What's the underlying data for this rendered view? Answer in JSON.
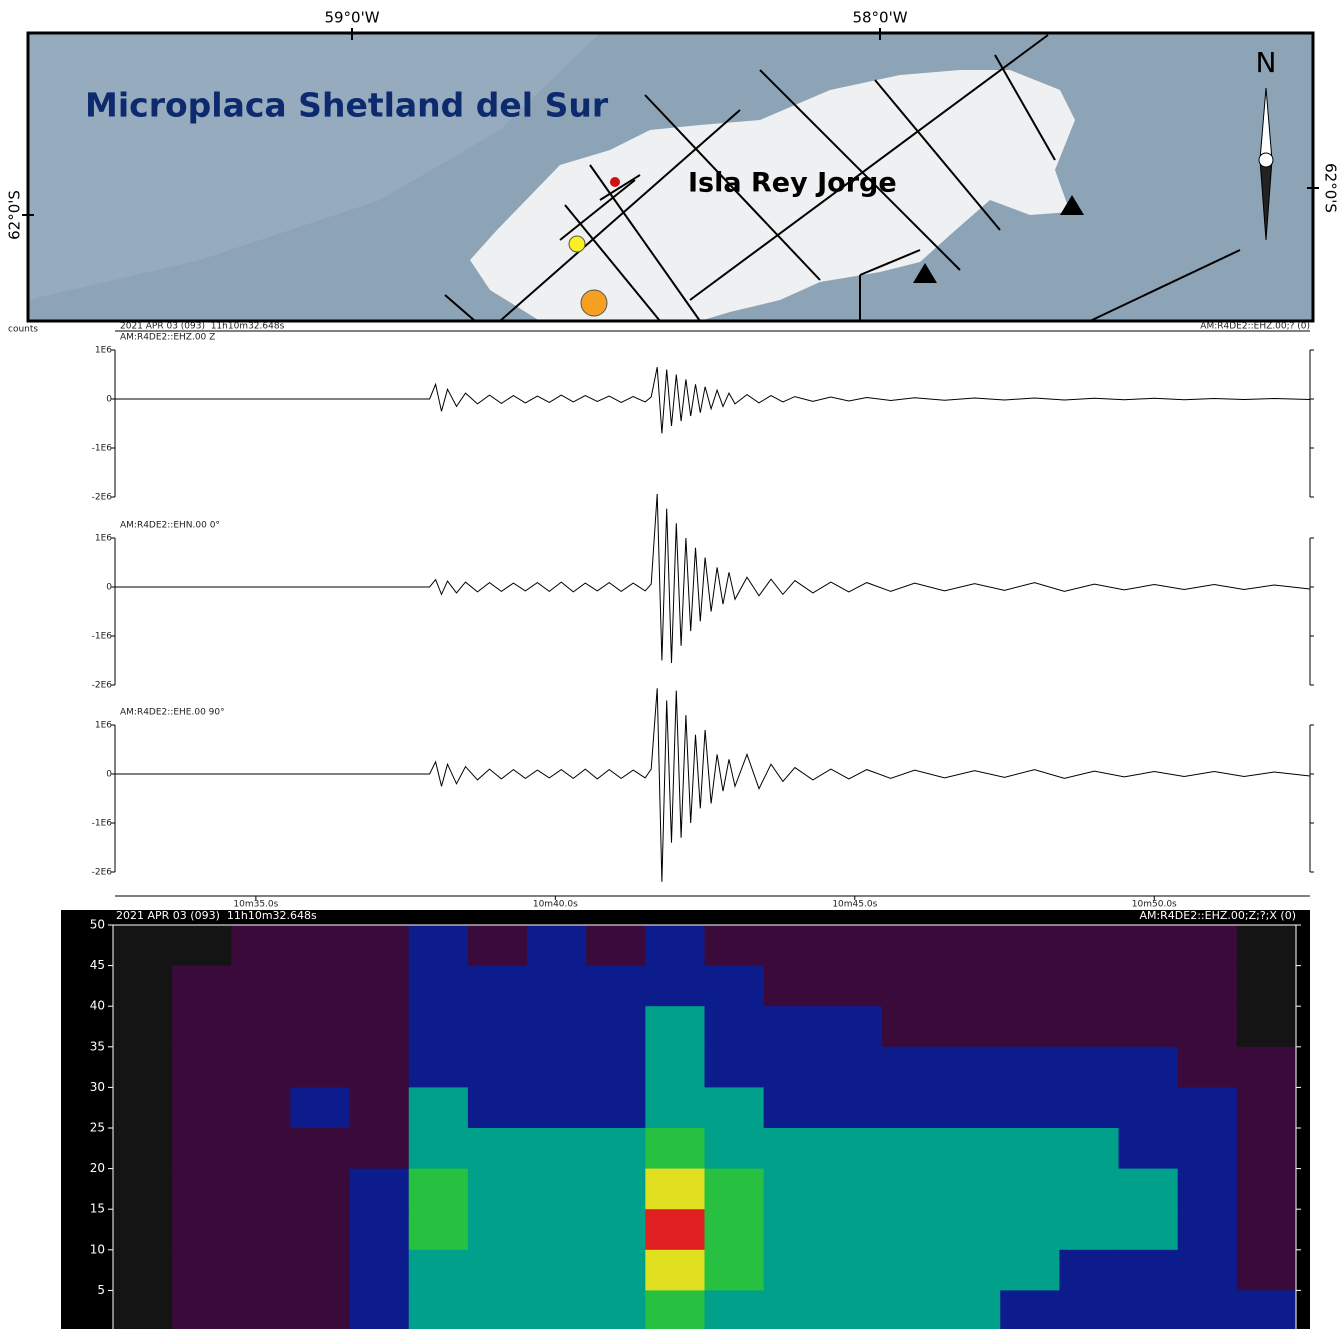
{
  "map": {
    "lon_labels": [
      "59°0'W",
      "58°0'W"
    ],
    "lat_labels": [
      "62°0'S",
      "62°0'S"
    ],
    "region_label": "Microplaca Shetland del Sur",
    "island_label": "Isla Rey Jorge",
    "north": "N"
  },
  "chart_data": [
    {
      "type": "line",
      "header_left": "2021 APR 03 (093)  11h10m32.648s",
      "header_right": "AM:R4DE2::EHZ.00;? (0)",
      "y_unit": "counts",
      "label": "AM:R4DE2::EHZ.00 Z",
      "x": [
        32.648,
        37.9,
        38.0,
        38.1,
        38.2,
        38.35,
        38.5,
        38.7,
        38.9,
        39.1,
        39.3,
        39.5,
        39.7,
        39.9,
        40.1,
        40.3,
        40.5,
        40.7,
        40.9,
        41.1,
        41.3,
        41.5,
        41.6,
        41.7,
        41.78,
        41.86,
        41.94,
        42.02,
        42.1,
        42.18,
        42.26,
        42.34,
        42.42,
        42.5,
        42.6,
        42.7,
        42.8,
        42.9,
        43.0,
        43.2,
        43.4,
        43.6,
        43.8,
        44.0,
        44.3,
        44.6,
        44.9,
        45.2,
        45.6,
        46.0,
        46.5,
        47.0,
        47.5,
        48.0,
        48.5,
        49.0,
        49.5,
        50.0,
        50.5,
        51.0,
        51.5,
        52.0,
        52.6
      ],
      "series": [
        {
          "color": "#000000",
          "values": [
            0,
            0,
            300000,
            -250000,
            200000,
            -150000,
            120000,
            -100000,
            80000,
            -90000,
            70000,
            -80000,
            60000,
            -70000,
            80000,
            -60000,
            70000,
            -50000,
            60000,
            -70000,
            50000,
            -60000,
            40000,
            650000,
            -700000,
            600000,
            -550000,
            500000,
            -450000,
            400000,
            -350000,
            300000,
            -280000,
            250000,
            -200000,
            180000,
            -150000,
            120000,
            -100000,
            90000,
            -80000,
            70000,
            -60000,
            50000,
            -50000,
            40000,
            -40000,
            30000,
            -30000,
            25000,
            -25000,
            20000,
            -20000,
            20000,
            -20000,
            15000,
            -15000,
            15000,
            -15000,
            10000,
            -10000,
            10000,
            -10000
          ]
        }
      ],
      "xlim": [
        32.648,
        52.6
      ],
      "ylim": [
        -2000000,
        1000000
      ],
      "yticks": [
        {
          "value": 1000000,
          "label": "1E6"
        },
        0,
        {
          "value": -1000000,
          "label": "-1E6"
        },
        {
          "value": -2000000,
          "label": "-2E6"
        }
      ]
    },
    {
      "type": "line",
      "label": "AM:R4DE2::EHN.00 0°",
      "x": [
        32.648,
        37.9,
        38.0,
        38.1,
        38.2,
        38.35,
        38.5,
        38.7,
        38.9,
        39.1,
        39.3,
        39.5,
        39.7,
        39.9,
        40.1,
        40.3,
        40.5,
        40.7,
        40.9,
        41.1,
        41.3,
        41.5,
        41.6,
        41.7,
        41.78,
        41.86,
        41.94,
        42.02,
        42.1,
        42.18,
        42.26,
        42.34,
        42.42,
        42.5,
        42.6,
        42.7,
        42.8,
        42.9,
        43.0,
        43.2,
        43.4,
        43.6,
        43.8,
        44.0,
        44.3,
        44.6,
        44.9,
        45.2,
        45.6,
        46.0,
        46.5,
        47.0,
        47.5,
        48.0,
        48.5,
        49.0,
        49.5,
        50.0,
        50.5,
        51.0,
        51.5,
        52.0,
        52.6
      ],
      "series": [
        {
          "color": "#000000",
          "values": [
            0,
            0,
            150000,
            -150000,
            120000,
            -120000,
            100000,
            -100000,
            90000,
            -90000,
            80000,
            -80000,
            90000,
            -90000,
            100000,
            -100000,
            80000,
            -80000,
            90000,
            -90000,
            80000,
            -80000,
            60000,
            1900000,
            -1500000,
            1600000,
            -1550000,
            1300000,
            -1200000,
            1000000,
            -900000,
            800000,
            -700000,
            600000,
            -500000,
            400000,
            -350000,
            300000,
            -250000,
            200000,
            -180000,
            160000,
            -150000,
            130000,
            -120000,
            100000,
            -100000,
            90000,
            -90000,
            80000,
            -80000,
            70000,
            -70000,
            90000,
            -90000,
            60000,
            -60000,
            50000,
            -50000,
            50000,
            -50000,
            40000,
            -40000
          ]
        }
      ],
      "xlim": [
        32.648,
        52.6
      ],
      "ylim": [
        -2000000,
        1000000
      ],
      "yticks": [
        {
          "value": 1000000,
          "label": "1E6"
        },
        0,
        {
          "value": -1000000,
          "label": "-1E6"
        },
        {
          "value": -2000000,
          "label": "-2E6"
        }
      ]
    },
    {
      "type": "line",
      "label": "AM:R4DE2::EHE.00 90°",
      "x": [
        32.648,
        37.9,
        38.0,
        38.1,
        38.2,
        38.35,
        38.5,
        38.7,
        38.9,
        39.1,
        39.3,
        39.5,
        39.7,
        39.9,
        40.1,
        40.3,
        40.5,
        40.7,
        40.9,
        41.1,
        41.3,
        41.5,
        41.6,
        41.7,
        41.78,
        41.86,
        41.94,
        42.02,
        42.1,
        42.18,
        42.26,
        42.34,
        42.42,
        42.5,
        42.6,
        42.7,
        42.8,
        42.9,
        43.0,
        43.2,
        43.4,
        43.6,
        43.8,
        44.0,
        44.3,
        44.6,
        44.9,
        45.2,
        45.6,
        46.0,
        46.5,
        47.0,
        47.5,
        48.0,
        48.5,
        49.0,
        49.5,
        50.0,
        50.5,
        51.0,
        51.5,
        52.0,
        52.6
      ],
      "series": [
        {
          "color": "#000000",
          "values": [
            0,
            0,
            250000,
            -250000,
            200000,
            -200000,
            150000,
            -120000,
            100000,
            -100000,
            90000,
            -90000,
            80000,
            -80000,
            90000,
            -90000,
            100000,
            -100000,
            90000,
            -90000,
            80000,
            -80000,
            100000,
            1750000,
            -2200000,
            1500000,
            -1400000,
            1700000,
            -1300000,
            1200000,
            -1000000,
            800000,
            -700000,
            900000,
            -600000,
            400000,
            -350000,
            300000,
            -250000,
            400000,
            -300000,
            200000,
            -150000,
            130000,
            -120000,
            100000,
            -100000,
            90000,
            -90000,
            80000,
            -80000,
            70000,
            -70000,
            90000,
            -90000,
            60000,
            -60000,
            50000,
            -50000,
            50000,
            -50000,
            40000,
            -40000
          ]
        }
      ],
      "xlim": [
        32.648,
        52.6
      ],
      "ylim": [
        -2000000,
        1000000
      ],
      "yticks": [
        {
          "value": 1000000,
          "label": "1E6"
        },
        0,
        {
          "value": -1000000,
          "label": "-1E6"
        },
        {
          "value": -2000000,
          "label": "-2E6"
        }
      ],
      "xticks": [
        {
          "value": 35,
          "label": "10m35.0s"
        },
        {
          "value": 40,
          "label": "10m40.0s"
        },
        {
          "value": 45,
          "label": "10m45.0s"
        },
        {
          "value": 50,
          "label": "10m50.0s"
        }
      ]
    },
    {
      "type": "heatmap",
      "header_left": "2021 APR 03 (093)  11h10m32.648s",
      "header_right": "AM:R4DE2::EHZ.00;Z;?;X (0)",
      "xlim": [
        32.648,
        52.6
      ],
      "ylim": [
        0,
        50
      ],
      "yticks": [
        5,
        10,
        15,
        20,
        25,
        30,
        35,
        40,
        45,
        50
      ],
      "palette": [
        "#141414",
        "#3a0a3a",
        "#0c1c8c",
        "#00a08a",
        "#28c040",
        "#e0e020",
        "#e02020"
      ],
      "z": [
        [
          0,
          0,
          1,
          1,
          1,
          2,
          1,
          2,
          1,
          2,
          1,
          1,
          1,
          1,
          1,
          1,
          1,
          1,
          1,
          0
        ],
        [
          0,
          1,
          1,
          1,
          1,
          2,
          2,
          2,
          2,
          2,
          2,
          1,
          1,
          1,
          1,
          1,
          1,
          1,
          1,
          0
        ],
        [
          0,
          1,
          1,
          1,
          1,
          2,
          2,
          2,
          2,
          3,
          2,
          2,
          2,
          1,
          1,
          1,
          1,
          1,
          1,
          0
        ],
        [
          0,
          1,
          1,
          1,
          1,
          2,
          2,
          2,
          2,
          3,
          2,
          2,
          2,
          2,
          2,
          2,
          2,
          2,
          1,
          1
        ],
        [
          0,
          1,
          1,
          2,
          1,
          3,
          2,
          2,
          2,
          3,
          3,
          2,
          2,
          2,
          2,
          2,
          2,
          2,
          2,
          1
        ],
        [
          0,
          1,
          1,
          1,
          1,
          3,
          3,
          3,
          3,
          4,
          3,
          3,
          3,
          3,
          3,
          3,
          3,
          2,
          2,
          1
        ],
        [
          0,
          1,
          1,
          1,
          2,
          4,
          3,
          3,
          3,
          5,
          4,
          3,
          3,
          3,
          3,
          3,
          3,
          3,
          2,
          1
        ],
        [
          0,
          1,
          1,
          1,
          2,
          4,
          3,
          3,
          3,
          6,
          4,
          3,
          3,
          3,
          3,
          3,
          3,
          3,
          2,
          1
        ],
        [
          0,
          1,
          1,
          1,
          2,
          3,
          3,
          3,
          3,
          5,
          4,
          3,
          3,
          3,
          3,
          3,
          2,
          2,
          2,
          1
        ],
        [
          0,
          1,
          1,
          1,
          2,
          3,
          3,
          3,
          3,
          4,
          3,
          3,
          3,
          3,
          3,
          2,
          2,
          2,
          2,
          2
        ]
      ]
    }
  ]
}
